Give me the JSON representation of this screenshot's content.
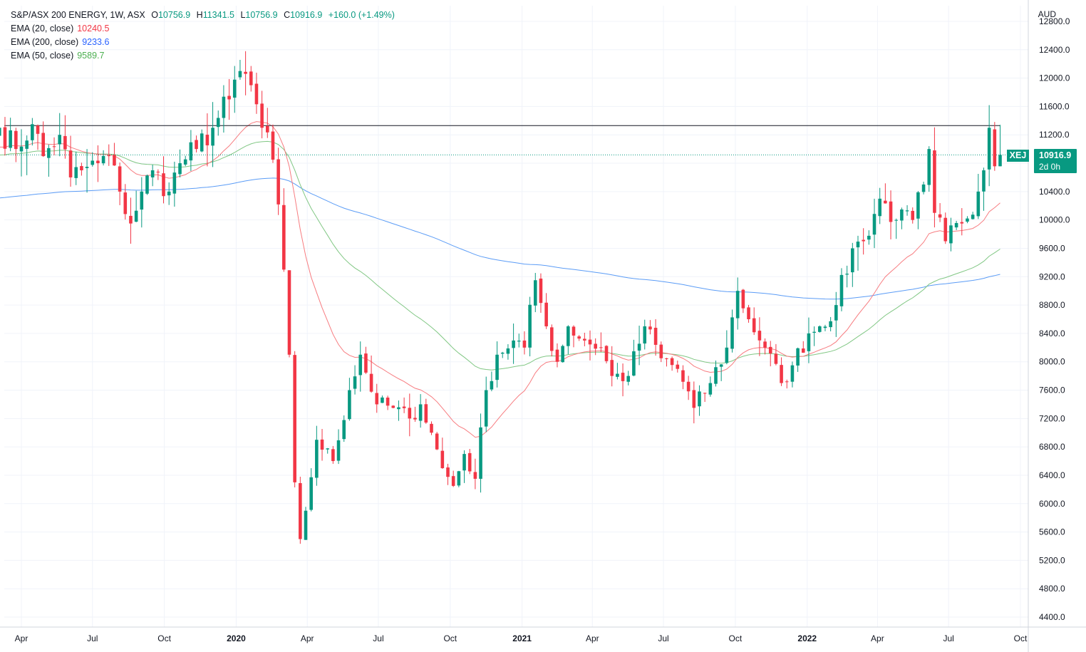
{
  "legend": {
    "title": "S&P/ASX 200 ENERGY, 1W, ASX",
    "open_key": "O",
    "open": "10756.9",
    "high_key": "H",
    "high": "11341.5",
    "low_key": "L",
    "low": "10756.9",
    "close_key": "C",
    "close": "10916.9",
    "change": "+160.0 (+1.49%)",
    "ema20_label": "EMA (20, close)",
    "ema20_value": "10240.5",
    "ema200_label": "EMA (200, close)",
    "ema200_value": "9233.6",
    "ema50_label": "EMA (50, close)",
    "ema50_value": "9589.7"
  },
  "currency": "AUD",
  "price_badge": {
    "symbol": "XEJ",
    "price": "10916.9",
    "countdown": "2d 0h"
  },
  "colors": {
    "up": "#089981",
    "down": "#f23645",
    "ema20": "#f23645",
    "ema50": "#4caf50",
    "ema200": "#2962ff",
    "grid": "#f0f3fa"
  },
  "chart_data": {
    "type": "candlestick",
    "x_labels": [
      "Apr",
      "Jul",
      "Oct",
      "2020",
      "Apr",
      "Jul",
      "Oct",
      "2021",
      "Apr",
      "Jul",
      "Oct",
      "2022",
      "Apr",
      "Jul",
      "Oct"
    ],
    "y_ticks": [
      4400,
      4800,
      5200,
      5600,
      6000,
      6400,
      6800,
      7200,
      7600,
      8000,
      8400,
      8800,
      9200,
      9600,
      10000,
      10400,
      10800,
      11200,
      11600,
      12000,
      12400,
      12800
    ],
    "ylim": [
      4300,
      12900
    ],
    "resistance_level": 11330,
    "last_price": 10916.9,
    "close_anchors": [
      [
        "2019-03-04",
        11300
      ],
      [
        "2019-03-25",
        11000
      ],
      [
        "2019-04-15",
        11350
      ],
      [
        "2019-04-29",
        10900
      ],
      [
        "2019-05-20",
        11200
      ],
      [
        "2019-06-03",
        10600
      ],
      [
        "2019-06-17",
        10700
      ],
      [
        "2019-07-08",
        10800
      ],
      [
        "2019-07-22",
        10900
      ],
      [
        "2019-08-05",
        10400
      ],
      [
        "2019-08-19",
        9950
      ],
      [
        "2019-09-02",
        10400
      ],
      [
        "2019-09-16",
        10700
      ],
      [
        "2019-10-07",
        10400
      ],
      [
        "2019-10-21",
        10800
      ],
      [
        "2019-11-11",
        11000
      ],
      [
        "2019-12-02",
        11300
      ],
      [
        "2019-12-23",
        11700
      ],
      [
        "2020-01-06",
        12100
      ],
      [
        "2020-01-20",
        11900
      ],
      [
        "2020-02-03",
        11300
      ],
      [
        "2020-02-17",
        10850
      ],
      [
        "2020-03-02",
        9300
      ],
      [
        "2020-03-09",
        8100
      ],
      [
        "2020-03-16",
        6300
      ],
      [
        "2020-03-23",
        5500
      ],
      [
        "2020-03-30",
        5900
      ],
      [
        "2020-04-13",
        6900
      ],
      [
        "2020-05-04",
        6600
      ],
      [
        "2020-05-25",
        7600
      ],
      [
        "2020-06-08",
        8100
      ],
      [
        "2020-06-29",
        7400
      ],
      [
        "2020-07-20",
        7350
      ],
      [
        "2020-08-10",
        7200
      ],
      [
        "2020-08-24",
        7400
      ],
      [
        "2020-09-07",
        7000
      ],
      [
        "2020-09-21",
        6500
      ],
      [
        "2020-10-05",
        6250
      ],
      [
        "2020-10-19",
        6700
      ],
      [
        "2020-11-02",
        6350
      ],
      [
        "2020-11-16",
        7600
      ],
      [
        "2020-11-30",
        8100
      ],
      [
        "2020-12-21",
        8300
      ],
      [
        "2021-01-04",
        8200
      ],
      [
        "2021-01-18",
        9150
      ],
      [
        "2021-02-01",
        8500
      ],
      [
        "2021-02-15",
        8000
      ],
      [
        "2021-03-01",
        8500
      ],
      [
        "2021-03-22",
        8300
      ],
      [
        "2021-04-12",
        8200
      ],
      [
        "2021-04-26",
        7800
      ],
      [
        "2021-05-17",
        7800
      ],
      [
        "2021-06-07",
        8500
      ],
      [
        "2021-06-28",
        8050
      ],
      [
        "2021-07-19",
        7900
      ],
      [
        "2021-08-09",
        7350
      ],
      [
        "2021-08-30",
        7700
      ],
      [
        "2021-09-20",
        8200
      ],
      [
        "2021-10-04",
        9000
      ],
      [
        "2021-10-18",
        8600
      ],
      [
        "2021-11-08",
        8200
      ],
      [
        "2021-11-29",
        7700
      ],
      [
        "2021-12-13",
        7950
      ],
      [
        "2022-01-03",
        8400
      ],
      [
        "2022-01-17",
        8500
      ],
      [
        "2022-02-07",
        8800
      ],
      [
        "2022-02-28",
        9600
      ],
      [
        "2022-03-14",
        9700
      ],
      [
        "2022-04-04",
        10300
      ],
      [
        "2022-04-25",
        10000
      ],
      [
        "2022-05-16",
        10000
      ],
      [
        "2022-05-30",
        10500
      ],
      [
        "2022-06-06",
        11000
      ],
      [
        "2022-06-13",
        10100
      ],
      [
        "2022-06-27",
        9700
      ],
      [
        "2022-07-18",
        9950
      ],
      [
        "2022-08-08",
        10400
      ],
      [
        "2022-08-15",
        10700
      ],
      [
        "2022-08-22",
        11300
      ],
      [
        "2022-08-29",
        10756.9
      ],
      [
        "2022-09-05",
        10916.9
      ]
    ],
    "ema20_final": 10240.5,
    "ema50_final": 9589.7,
    "ema200_final": 9233.6
  }
}
